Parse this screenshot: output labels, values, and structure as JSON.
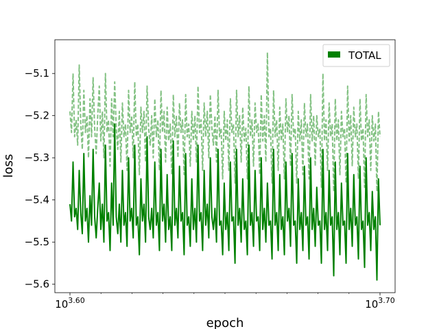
{
  "chart_data": {
    "type": "line",
    "xlabel": "epoch",
    "ylabel": "loss",
    "xscale": "log",
    "xlim": [
      3.6,
      3.7
    ],
    "ylim": [
      -5.62,
      -5.02
    ],
    "x_tick_labels": [
      {
        "value": 3.6,
        "base": "10",
        "exponent": "3.60"
      },
      {
        "value": 3.7,
        "base": "10",
        "exponent": "3.70"
      }
    ],
    "y_ticks": [
      {
        "value": -5.1,
        "label": "−5.1"
      },
      {
        "value": -5.2,
        "label": "−5.2"
      },
      {
        "value": -5.3,
        "label": "−5.3"
      },
      {
        "value": -5.4,
        "label": "−5.4"
      },
      {
        "value": -5.5,
        "label": "−5.5"
      },
      {
        "value": -5.6,
        "label": "−5.6"
      }
    ],
    "grid": false,
    "legend": {
      "position": "top-right",
      "entries": [
        {
          "label": "TOTAL",
          "color": "#008000"
        }
      ]
    },
    "series": [
      {
        "name": "TOTAL",
        "color": "#008000",
        "style": "solid",
        "x_start": 3.6,
        "x_end": 3.7,
        "values": [
          -5.41,
          -5.45,
          -5.31,
          -5.44,
          -5.42,
          -5.47,
          -5.33,
          -5.43,
          -5.48,
          -5.29,
          -5.45,
          -5.42,
          -5.5,
          -5.39,
          -5.46,
          -5.28,
          -5.44,
          -5.49,
          -5.42,
          -5.36,
          -5.47,
          -5.41,
          -5.5,
          -5.27,
          -5.45,
          -5.43,
          -5.52,
          -5.36,
          -5.46,
          -5.22,
          -5.44,
          -5.48,
          -5.41,
          -5.5,
          -5.33,
          -5.46,
          -5.43,
          -5.51,
          -5.3,
          -5.45,
          -5.42,
          -5.49,
          -5.27,
          -5.46,
          -5.44,
          -5.53,
          -5.35,
          -5.45,
          -5.41,
          -5.5,
          -5.25,
          -5.44,
          -5.47,
          -5.42,
          -5.49,
          -5.31,
          -5.46,
          -5.43,
          -5.52,
          -5.28,
          -5.45,
          -5.41,
          -5.5,
          -5.34,
          -5.47,
          -5.44,
          -5.52,
          -5.26,
          -5.46,
          -5.42,
          -5.49,
          -5.32,
          -5.45,
          -5.43,
          -5.53,
          -5.29,
          -5.46,
          -5.44,
          -5.51,
          -5.35,
          -5.47,
          -5.42,
          -5.5,
          -5.27,
          -5.45,
          -5.43,
          -5.52,
          -5.33,
          -5.46,
          -5.41,
          -5.49,
          -5.3,
          -5.44,
          -5.47,
          -5.42,
          -5.5,
          -5.28,
          -5.46,
          -5.45,
          -5.53,
          -5.36,
          -5.47,
          -5.43,
          -5.52,
          -5.31,
          -5.45,
          -5.44,
          -5.55,
          -5.28,
          -5.46,
          -5.42,
          -5.5,
          -5.35,
          -5.47,
          -5.45,
          -5.53,
          -5.27,
          -5.46,
          -5.43,
          -5.51,
          -5.33,
          -5.45,
          -5.44,
          -5.52,
          -5.3,
          -5.47,
          -5.42,
          -5.5,
          -5.36,
          -5.46,
          -5.45,
          -5.54,
          -5.28,
          -5.46,
          -5.43,
          -5.52,
          -5.34,
          -5.47,
          -5.44,
          -5.53,
          -5.31,
          -5.45,
          -5.42,
          -5.51,
          -5.29,
          -5.46,
          -5.45,
          -5.55,
          -5.35,
          -5.47,
          -5.43,
          -5.52,
          -5.32,
          -5.46,
          -5.44,
          -5.54,
          -5.3,
          -5.47,
          -5.42,
          -5.51,
          -5.37,
          -5.46,
          -5.45,
          -5.55,
          -5.28,
          -5.47,
          -5.43,
          -5.52,
          -5.33,
          -5.46,
          -5.44,
          -5.58,
          -5.31,
          -5.47,
          -5.43,
          -5.53,
          -5.36,
          -5.46,
          -5.45,
          -5.55,
          -5.29,
          -5.47,
          -5.42,
          -5.51,
          -5.34,
          -5.46,
          -5.44,
          -5.54,
          -5.32,
          -5.47,
          -5.45,
          -5.56,
          -5.3,
          -5.46,
          -5.43,
          -5.52,
          -5.38,
          -5.47,
          -5.44,
          -5.59,
          -5.35,
          -5.46
        ]
      },
      {
        "name": "",
        "color": "#82c182",
        "style": "dashed",
        "x_start": 3.6,
        "x_end": 3.7,
        "values": [
          -5.19,
          -5.24,
          -5.1,
          -5.25,
          -5.21,
          -5.27,
          -5.08,
          -5.22,
          -5.28,
          -5.14,
          -5.24,
          -5.2,
          -5.3,
          -5.16,
          -5.25,
          -5.11,
          -5.23,
          -5.29,
          -5.2,
          -5.13,
          -5.26,
          -5.19,
          -5.3,
          -5.1,
          -5.24,
          -5.21,
          -5.32,
          -5.16,
          -5.25,
          -5.12,
          -5.23,
          -5.28,
          -5.19,
          -5.31,
          -5.17,
          -5.25,
          -5.22,
          -5.33,
          -5.14,
          -5.24,
          -5.2,
          -5.3,
          -5.12,
          -5.25,
          -5.22,
          -5.34,
          -5.18,
          -5.24,
          -5.19,
          -5.31,
          -5.13,
          -5.23,
          -5.27,
          -5.2,
          -5.3,
          -5.16,
          -5.25,
          -5.21,
          -5.33,
          -5.14,
          -5.24,
          -5.19,
          -5.31,
          -5.18,
          -5.26,
          -5.22,
          -5.34,
          -5.15,
          -5.25,
          -5.2,
          -5.3,
          -5.17,
          -5.24,
          -5.21,
          -5.34,
          -5.15,
          -5.25,
          -5.22,
          -5.32,
          -5.19,
          -5.26,
          -5.2,
          -5.31,
          -5.13,
          -5.24,
          -5.21,
          -5.33,
          -5.17,
          -5.25,
          -5.19,
          -5.3,
          -5.15,
          -5.23,
          -5.27,
          -5.2,
          -5.31,
          -5.14,
          -5.25,
          -5.23,
          -5.35,
          -5.19,
          -5.26,
          -5.21,
          -5.33,
          -5.16,
          -5.24,
          -5.22,
          -5.36,
          -5.14,
          -5.25,
          -5.2,
          -5.31,
          -5.18,
          -5.26,
          -5.23,
          -5.35,
          -5.13,
          -5.25,
          -5.21,
          -5.32,
          -5.17,
          -5.24,
          -5.22,
          -5.34,
          -5.15,
          -5.26,
          -5.2,
          -5.31,
          -5.05,
          -5.25,
          -5.23,
          -5.36,
          -5.14,
          -5.25,
          -5.21,
          -5.33,
          -5.18,
          -5.26,
          -5.22,
          -5.35,
          -5.16,
          -5.24,
          -5.2,
          -5.32,
          -5.15,
          -5.25,
          -5.23,
          -5.36,
          -5.19,
          -5.26,
          -5.21,
          -5.34,
          -5.17,
          -5.25,
          -5.22,
          -5.35,
          -5.15,
          -5.26,
          -5.2,
          -5.32,
          -5.2,
          -5.25,
          -5.23,
          -5.37,
          -5.1,
          -5.26,
          -5.21,
          -5.33,
          -5.17,
          -5.25,
          -5.22,
          -5.38,
          -5.16,
          -5.26,
          -5.21,
          -5.34,
          -5.19,
          -5.25,
          -5.23,
          -5.36,
          -5.13,
          -5.26,
          -5.2,
          -5.32,
          -5.18,
          -5.25,
          -5.22,
          -5.35,
          -5.16,
          -5.26,
          -5.23,
          -5.37,
          -5.15,
          -5.25,
          -5.21,
          -5.33,
          -5.2,
          -5.26,
          -5.22,
          -5.38,
          -5.19,
          -5.25
        ]
      }
    ]
  }
}
